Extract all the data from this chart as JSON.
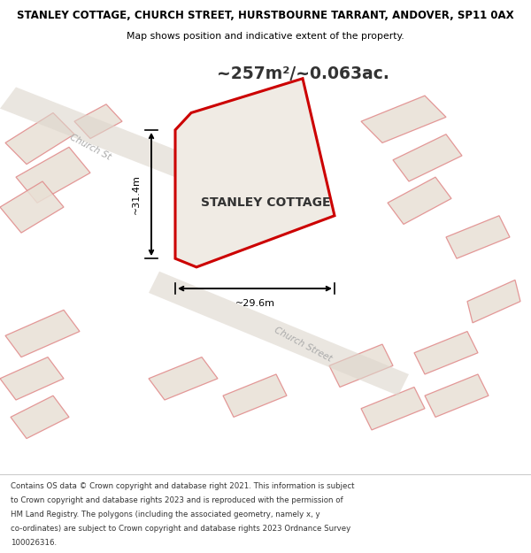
{
  "title_line1": "STANLEY COTTAGE, CHURCH STREET, HURSTBOURNE TARRANT, ANDOVER, SP11 0AX",
  "title_line2": "Map shows position and indicative extent of the property.",
  "area_text": "~257m²/~0.063ac.",
  "property_label": "STANLEY COTTAGE",
  "dim1_label": "~31.4m",
  "dim2_label": "~29.6m",
  "footer_lines": [
    "Contains OS data © Crown copyright and database right 2021. This information is subject",
    "to Crown copyright and database rights 2023 and is reproduced with the permission of",
    "HM Land Registry. The polygons (including the associated geometry, namely x, y",
    "co-ordinates) are subject to Crown copyright and database rights 2023 Ordnance Survey",
    "100026316."
  ],
  "map_bg": "#f0ebe4",
  "property_edge": "#cc0000",
  "bldg_face": "#e8e0d5",
  "bldg_edge": "#e08888",
  "road_label_color": "#aaaaaa",
  "text_color": "#333333"
}
